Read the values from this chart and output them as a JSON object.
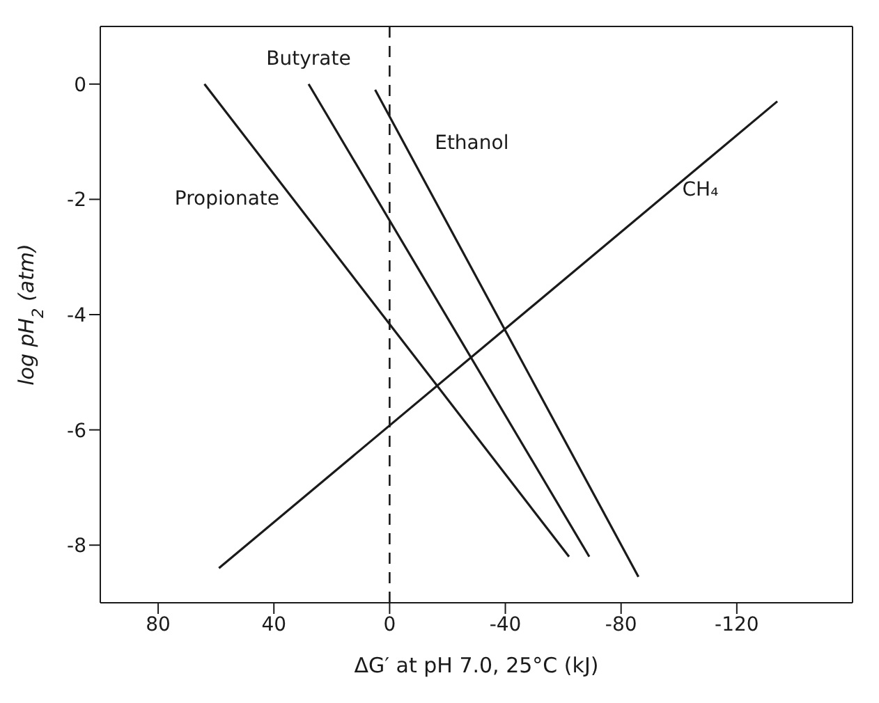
{
  "chart_data": {
    "type": "line",
    "xlabel": "ΔG′ at pH 7.0, 25°C (kJ)",
    "ylabel": "log pH$_{2}$ (atm)",
    "xlim": [
      100,
      -160
    ],
    "xticks": [
      80,
      40,
      0,
      -40,
      -80,
      -120
    ],
    "ylim": [
      -9,
      1
    ],
    "yticks": [
      0,
      -2,
      -4,
      -6,
      -8
    ],
    "grid": false,
    "legend": false,
    "marker": "none",
    "line_style": "solid",
    "series": [
      {
        "name": "Propionate",
        "color": "#1a1a1a",
        "x": [
          64,
          -62
        ],
        "values": [
          0,
          -8.2
        ]
      },
      {
        "name": "Butyrate",
        "color": "#1a1a1a",
        "x": [
          28,
          -69
        ],
        "values": [
          0,
          -8.2
        ]
      },
      {
        "name": "Ethanol",
        "color": "#1a1a1a",
        "x": [
          5,
          -86
        ],
        "values": [
          -0.1,
          -8.55
        ]
      },
      {
        "name": "CH₄",
        "color": "#1a1a1a",
        "x": [
          59,
          -134
        ],
        "values": [
          -8.4,
          -0.3
        ]
      }
    ],
    "ref_lines": [
      {
        "axis": "x",
        "value": 0,
        "line_style": "dashed",
        "color": "#1a1a1a"
      }
    ]
  }
}
